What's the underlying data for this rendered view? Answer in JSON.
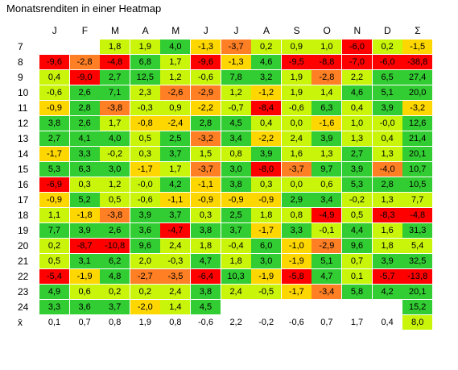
{
  "chart_data": {
    "type": "heatmap",
    "title": "Monatsrenditen in einer Heatmap",
    "columns": [
      "J",
      "F",
      "M",
      "A",
      "M",
      "J",
      "J",
      "A",
      "S",
      "O",
      "N",
      "D",
      "Σ"
    ],
    "rows": [
      {
        "label": "7",
        "values": [
          null,
          null,
          "1,8",
          "1,9",
          "4,0",
          "-1,3",
          "-3,7",
          "0,2",
          "0,9",
          "1,0",
          "-6,0",
          "0,2",
          "-1,5"
        ]
      },
      {
        "label": "8",
        "values": [
          "-9,6",
          "-2,8",
          "-4,8",
          "6,8",
          "1,7",
          "-9,6",
          "-1,3",
          "4,6",
          "-9,5",
          "-8,8",
          "-7,0",
          "-6,0",
          "-38,8"
        ]
      },
      {
        "label": "9",
        "values": [
          "0,4",
          "-9,0",
          "2,7",
          "12,5",
          "1,2",
          "-0,6",
          "7,8",
          "3,2",
          "1,9",
          "-2,8",
          "2,2",
          "6,5",
          "27,4"
        ]
      },
      {
        "label": "10",
        "values": [
          "-0,6",
          "2,6",
          "7,1",
          "2,3",
          "-2,6",
          "-2,9",
          "1,2",
          "-1,2",
          "1,9",
          "1,4",
          "4,6",
          "5,1",
          "20,0"
        ]
      },
      {
        "label": "11",
        "values": [
          "-0,9",
          "2,8",
          "-3,8",
          "-0,3",
          "0,9",
          "-2,2",
          "-0,7",
          "-8,4",
          "-0,6",
          "6,3",
          "0,4",
          "3,9",
          "-3,2"
        ]
      },
      {
        "label": "12",
        "values": [
          "3,8",
          "2,6",
          "1,7",
          "-0,8",
          "-2,4",
          "2,8",
          "4,5",
          "0,4",
          "0,0",
          "-1,6",
          "1,0",
          "-0,0",
          "12,6"
        ]
      },
      {
        "label": "13",
        "values": [
          "2,7",
          "4,1",
          "4,0",
          "0,5",
          "2,5",
          "-3,2",
          "3,4",
          "-2,2",
          "2,4",
          "3,9",
          "1,3",
          "0,4",
          "21,4"
        ]
      },
      {
        "label": "14",
        "values": [
          "-1,7",
          "3,3",
          "-0,2",
          "0,3",
          "3,7",
          "1,5",
          "0,8",
          "3,9",
          "1,6",
          "1,3",
          "2,7",
          "1,3",
          "20,1"
        ]
      },
      {
        "label": "15",
        "values": [
          "5,3",
          "6,3",
          "3,0",
          "-1,7",
          "1,7",
          "-3,7",
          "3,0",
          "-8,0",
          "-3,7",
          "9,7",
          "3,9",
          "-4,0",
          "10,7"
        ]
      },
      {
        "label": "16",
        "values": [
          "-6,9",
          "0,3",
          "1,2",
          "-0,0",
          "4,2",
          "-1,1",
          "3,8",
          "0,3",
          "0,0",
          "0,6",
          "5,3",
          "2,8",
          "10,5"
        ]
      },
      {
        "label": "17",
        "values": [
          "-0,9",
          "5,2",
          "0,5",
          "-0,6",
          "-1,1",
          "-0,9",
          "-0,9",
          "-0,9",
          "2,9",
          "3,4",
          "-0,2",
          "1,3",
          "7,7"
        ]
      },
      {
        "label": "18",
        "values": [
          "1,1",
          "-1,8",
          "-3,8",
          "3,9",
          "3,7",
          "0,3",
          "2,5",
          "1,8",
          "0,8",
          "-4,9",
          "0,5",
          "-8,3",
          "-4,8"
        ]
      },
      {
        "label": "19",
        "values": [
          "7,7",
          "3,9",
          "2,6",
          "3,6",
          "-4,7",
          "3,8",
          "3,7",
          "-1,7",
          "3,3",
          "-0,1",
          "4,4",
          "1,6",
          "31,3"
        ]
      },
      {
        "label": "20",
        "values": [
          "0,2",
          "-8,7",
          "-10,8",
          "9,6",
          "2,4",
          "1,8",
          "-0,4",
          "6,0",
          "-1,0",
          "-2,9",
          "9,6",
          "1,8",
          "5,4"
        ]
      },
      {
        "label": "21",
        "values": [
          "0,5",
          "3,1",
          "6,2",
          "2,0",
          "-0,3",
          "4,7",
          "1,8",
          "3,0",
          "-1,9",
          "5,1",
          "0,7",
          "3,9",
          "32,5"
        ]
      },
      {
        "label": "22",
        "values": [
          "-5,4",
          "-1,9",
          "4,8",
          "-2,7",
          "-3,5",
          "-6,4",
          "10,3",
          "-1,9",
          "-5,8",
          "4,7",
          "0,1",
          "-5,7",
          "-13,8"
        ]
      },
      {
        "label": "23",
        "values": [
          "4,9",
          "0,6",
          "0,2",
          "0,2",
          "2,4",
          "3,8",
          "2,4",
          "-0,5",
          "-1,7",
          "-3,4",
          "5,8",
          "4,2",
          "20,1"
        ]
      },
      {
        "label": "24",
        "values": [
          "3,3",
          "3,6",
          "3,7",
          "-2,0",
          "1,4",
          "4,5",
          null,
          null,
          null,
          null,
          null,
          null,
          "15,2"
        ]
      },
      {
        "label": "x̄",
        "values": [
          "0,1",
          "0,7",
          "0,8",
          "1,9",
          "0,8",
          "-0,6",
          "2,2",
          "-0,2",
          "-0,6",
          "0,7",
          "1,7",
          "0,4",
          "8,0"
        ]
      }
    ]
  }
}
